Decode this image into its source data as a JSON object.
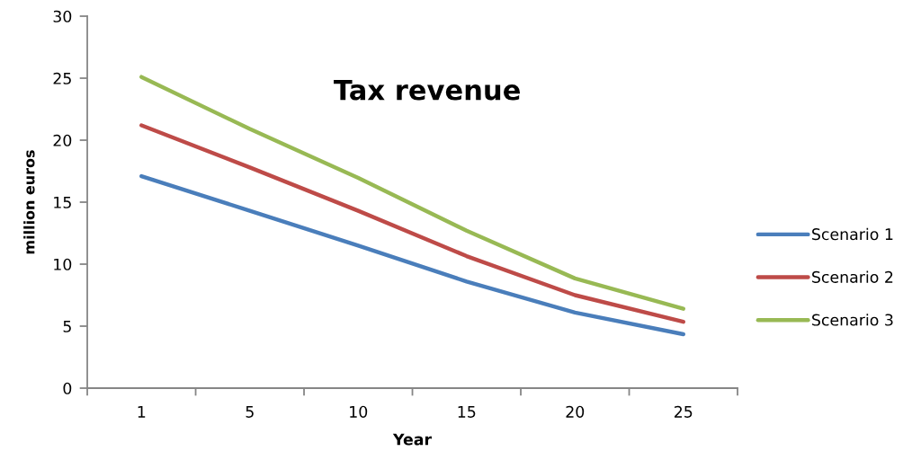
{
  "chart_data": {
    "type": "line",
    "title": "Tax revenue",
    "xlabel": "Year",
    "ylabel": "million euros",
    "categories": [
      "1",
      "5",
      "10",
      "15",
      "20",
      "25"
    ],
    "series": [
      {
        "name": "Scenario 1",
        "color": "#4a7ebb",
        "values": [
          17.1,
          14.3,
          11.5,
          8.6,
          6.1,
          4.35
        ]
      },
      {
        "name": "Scenario 2",
        "color": "#be4b48",
        "values": [
          21.2,
          17.8,
          14.3,
          10.65,
          7.5,
          5.35
        ]
      },
      {
        "name": "Scenario 3",
        "color": "#98b954",
        "values": [
          25.1,
          20.9,
          16.95,
          12.7,
          8.85,
          6.4
        ]
      }
    ],
    "ylim": [
      0,
      30
    ],
    "yticks": [
      0,
      5,
      10,
      15,
      20,
      25,
      30
    ],
    "grid": false,
    "legend": "right",
    "marker": "none",
    "line_style": "solid"
  }
}
